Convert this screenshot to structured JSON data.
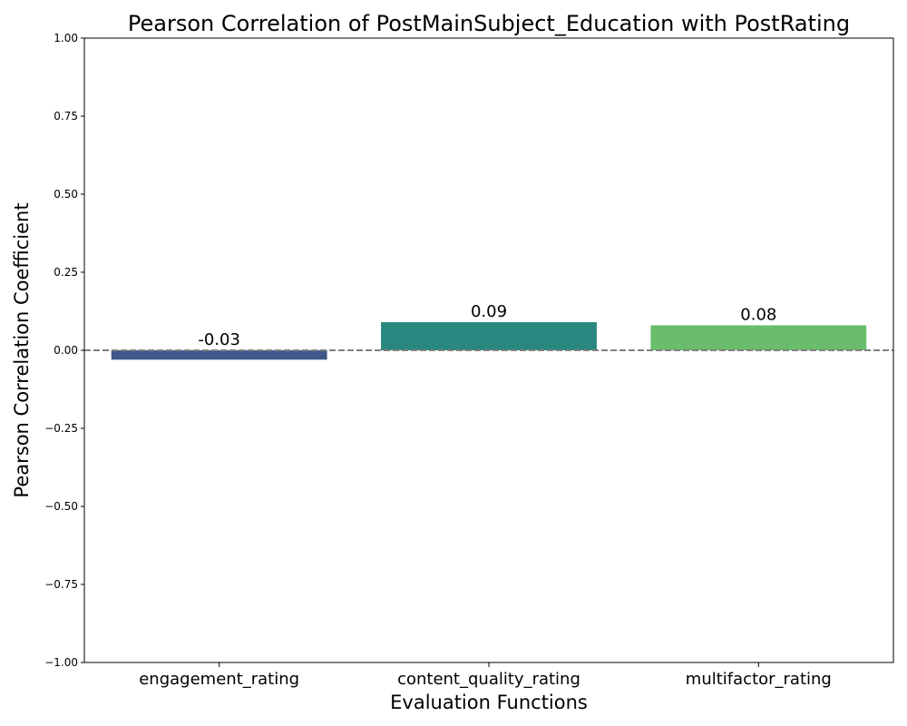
{
  "chart_data": {
    "type": "bar",
    "title": "Pearson Correlation of PostMainSubject_Education with PostRating",
    "xlabel": "Evaluation Functions",
    "ylabel": "Pearson Correlation Coefficient",
    "categories": [
      "engagement_rating",
      "content_quality_rating",
      "multifactor_rating"
    ],
    "values": [
      -0.03,
      0.09,
      0.08
    ],
    "data_labels": [
      "-0.03",
      "0.09",
      "0.08"
    ],
    "colors": [
      "#3f5789",
      "#2a8780",
      "#6abd6b"
    ],
    "ylim": [
      -1.0,
      1.0
    ],
    "yticks": [
      -1.0,
      -0.75,
      -0.5,
      -0.25,
      0.0,
      0.25,
      0.5,
      0.75,
      1.0
    ],
    "ytick_labels": [
      "−1.00",
      "−0.75",
      "−0.50",
      "−0.25",
      "0.00",
      "0.25",
      "0.50",
      "0.75",
      "1.00"
    ],
    "reference_line": {
      "y": 0,
      "style": "dashed",
      "color": "#808080"
    },
    "grid": false,
    "legend": false
  }
}
